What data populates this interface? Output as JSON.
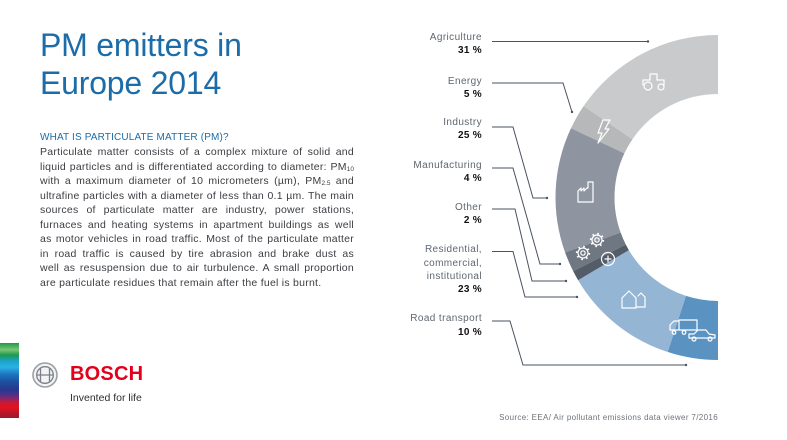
{
  "title": {
    "line1": "PM emitters in",
    "line2": "Europe 2014"
  },
  "intro": {
    "heading": "WHAT IS PARTICULATE MATTER (PM)?",
    "lines": [
      {
        "text": "Particulate matter consists of a complex mixture of solid and"
      },
      {
        "text": "liquid particles and is differentiated according to diameter: PM",
        "sub": "10"
      },
      {
        "text": "with a maximum diameter of 10 micrometers (µm), PM",
        "sub": "2.5",
        "after": " and"
      },
      {
        "text": "ultrafine particles with a diameter of less than 0.1 µm. The main"
      },
      {
        "text": "sources of particulate matter are industry, power stations,"
      },
      {
        "text": "furnaces and heating systems in apartment buildings as well"
      },
      {
        "text": "as motor vehicles in road traffic. Most of the particulate matter"
      },
      {
        "text": "in road traffic is caused by tire abrasion and brake dust as"
      },
      {
        "text": "well as resuspension due to air turbulence. A small proportion"
      },
      {
        "text": "are particulate residues that remain after the fuel is burnt."
      }
    ]
  },
  "brand": {
    "name": "BOSCH",
    "tagline": "Invented for life"
  },
  "colors": {
    "title": "#1b6ca8",
    "brand_red": "#e2001a",
    "leader_line": "#4a5360"
  },
  "chart_data": {
    "type": "pie",
    "variant": "half-donut",
    "title": "PM emitters in Europe 2014",
    "unit": "%",
    "categories": [
      "Agriculture",
      "Energy",
      "Industry",
      "Manufacturing",
      "Other",
      "Residential, commercial, institutional",
      "Road transport"
    ],
    "label_lines": [
      [
        "Agriculture"
      ],
      [
        "Energy"
      ],
      [
        "Industry"
      ],
      [
        "Manufacturing"
      ],
      [
        "Other"
      ],
      [
        "Residential,",
        "commercial,",
        "institutional"
      ],
      [
        "Road transport"
      ]
    ],
    "values": [
      31,
      5,
      25,
      4,
      2,
      23,
      10
    ],
    "value_labels": [
      "31 %",
      "5 %",
      "25 %",
      "4 %",
      "2 %",
      "23 %",
      "10 %"
    ],
    "colors": [
      "#c9cacc",
      "#b6b8ba",
      "#8e95a0",
      "#6f7782",
      "#535c67",
      "#95b5d5",
      "#5a92c2"
    ],
    "icons": [
      "tractor-icon",
      "lightning-icon",
      "factory-icon",
      "gears-icon",
      "plus-circle-icon",
      "houses-icon",
      "truck-car-icon"
    ],
    "legend_position": "left",
    "source": "Source: EEA/ Air pollutant emissions data viewer 7/2016"
  }
}
